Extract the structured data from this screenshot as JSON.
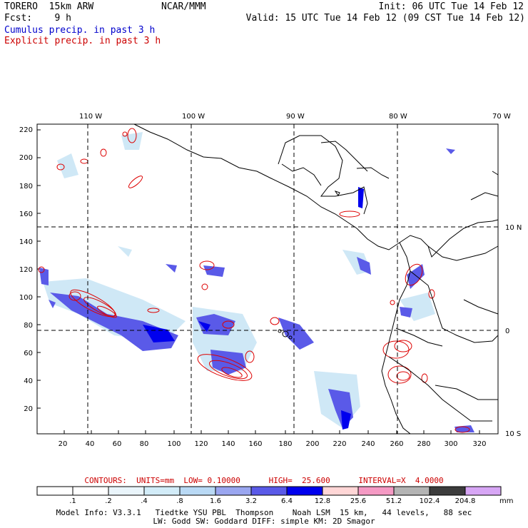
{
  "header": {
    "model": "TORERO  15km ARW",
    "org": "NCAR/MMM",
    "init": "Init: 06 UTC Tue 14 Feb 12",
    "fcst": "Fcst:    9 h",
    "valid": "Valid: 15 UTC Tue 14 Feb 12 (09 CST Tue 14 Feb 12)",
    "cumulus": "Cumulus precip. in past 3 h",
    "explicit": "Explicit precip. in past 3 h"
  },
  "map": {
    "lon_labels": [
      "110 W",
      "100 W",
      "90 W",
      "80 W",
      "70 W"
    ],
    "lat_labels": [
      "10 N",
      "0",
      "10 S"
    ],
    "y_ticks": [
      "220",
      "200",
      "180",
      "160",
      "140",
      "120",
      "100",
      "80",
      "60",
      "40",
      "20"
    ],
    "x_ticks": [
      "20",
      "40",
      "60",
      "80",
      "100",
      "120",
      "140",
      "160",
      "180",
      "200",
      "220",
      "240",
      "260",
      "280",
      "300",
      "320"
    ],
    "colors": {
      "coast": "#000000",
      "cumulus_light": "#cfe8f6",
      "cumulus_mid": "#5a5ae8",
      "cumulus_dark": "#0000ee",
      "explicit": "#dd0000"
    }
  },
  "legend": {
    "title": "CONTOURS:  UNITS=mm  LOW= 0.10000      HIGH=  25.600      INTERVAL=X  4.0000",
    "labels": [
      ".1",
      ".2",
      ".4",
      ".8",
      "1.6",
      "3.2",
      "6.4",
      "12.8",
      "25.6",
      "51.2",
      "102.4",
      "204.8"
    ],
    "unit": "mm",
    "colors": [
      "#ffffff",
      "#ffffff",
      "#eaf5fb",
      "#d2ecf8",
      "#b9d9f5",
      "#9aa6f0",
      "#5a5ae8",
      "#0000ee",
      "#ffd6d6",
      "#f59ac4",
      "#b4b4b4",
      "#3c3c3c",
      "#d7a6f5"
    ]
  },
  "footer": {
    "line1": "Model Info: V3.3.1   Tiedtke YSU PBL  Thompson    Noah LSM  15 km,   44 levels,   88 sec",
    "line2": "LW: Godd SW: Goddard DIFF: simple KM: 2D Smagor"
  }
}
